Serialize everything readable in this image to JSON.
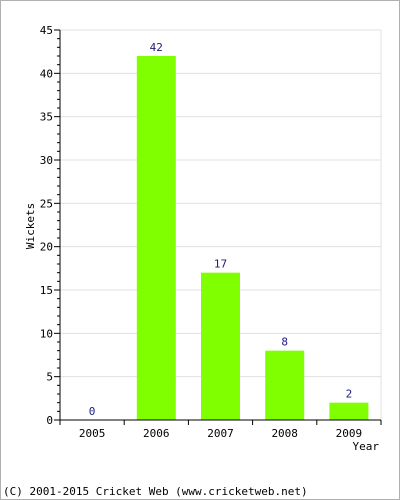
{
  "chart_data": {
    "type": "bar",
    "categories": [
      "2005",
      "2006",
      "2007",
      "2008",
      "2009"
    ],
    "values": [
      0,
      42,
      17,
      8,
      2
    ],
    "data_labels": [
      "0",
      "42",
      "17",
      "8",
      "2"
    ],
    "title": "",
    "xlabel": "Year",
    "ylabel": "Wickets",
    "ylim": [
      0,
      45
    ],
    "yticks": [
      0,
      5,
      10,
      15,
      20,
      25,
      30,
      35,
      40,
      45
    ],
    "grid": true,
    "bar_color": "#80ff00",
    "label_color": "#1a1a80"
  },
  "footer": {
    "copyright": "(C) 2001-2015 Cricket Web (www.cricketweb.net)"
  }
}
